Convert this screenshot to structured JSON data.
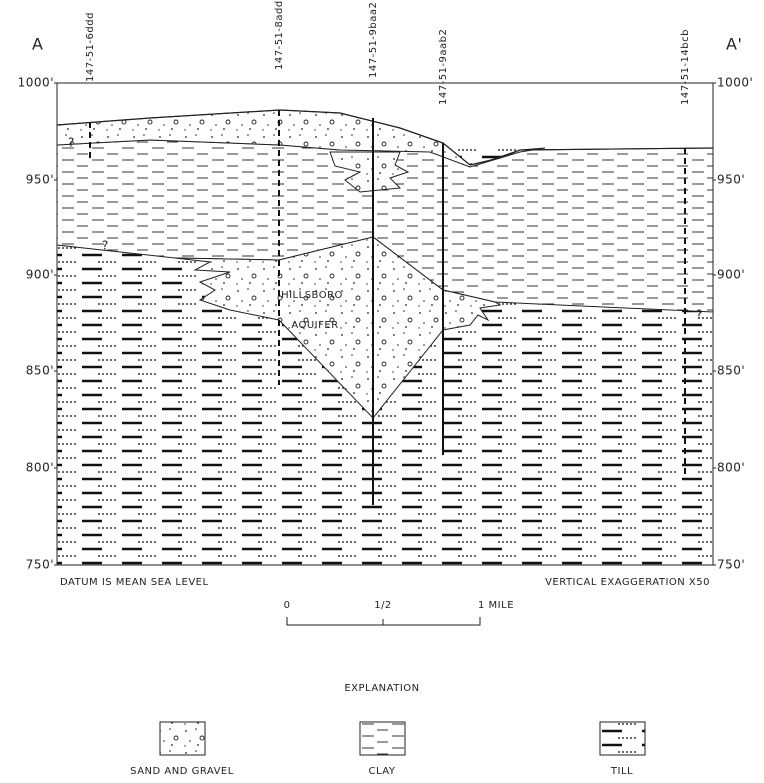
{
  "section": {
    "left_end": "A",
    "right_end": "A'"
  },
  "elevation_labels": {
    "left": [
      "1000'",
      "950'",
      "900'",
      "850'",
      "800'",
      "750'"
    ],
    "right": [
      "1000'",
      "950'",
      "900'",
      "850'",
      "800'",
      "750'"
    ]
  },
  "wells": [
    {
      "label": "147-51-6ddd"
    },
    {
      "label": "147-51-8add"
    },
    {
      "label": "147-51-9baa2"
    },
    {
      "label": "147-51-9aab2"
    },
    {
      "label": "147-51-14bcb"
    }
  ],
  "uncertain_marks": [
    "?",
    "?",
    "?"
  ],
  "aquifer": {
    "line1": "HILLSBORO",
    "line2": "AQUIFER"
  },
  "notes": {
    "datum": "DATUM IS MEAN SEA LEVEL",
    "exaggeration": "VERTICAL EXAGGERATION X50"
  },
  "scale": {
    "labels": [
      "0",
      "1/2",
      "1 MILE"
    ]
  },
  "legend": {
    "title": "EXPLANATION",
    "items": [
      {
        "label": "SAND AND GRAVEL"
      },
      {
        "label": "CLAY"
      },
      {
        "label": "TILL"
      }
    ]
  }
}
